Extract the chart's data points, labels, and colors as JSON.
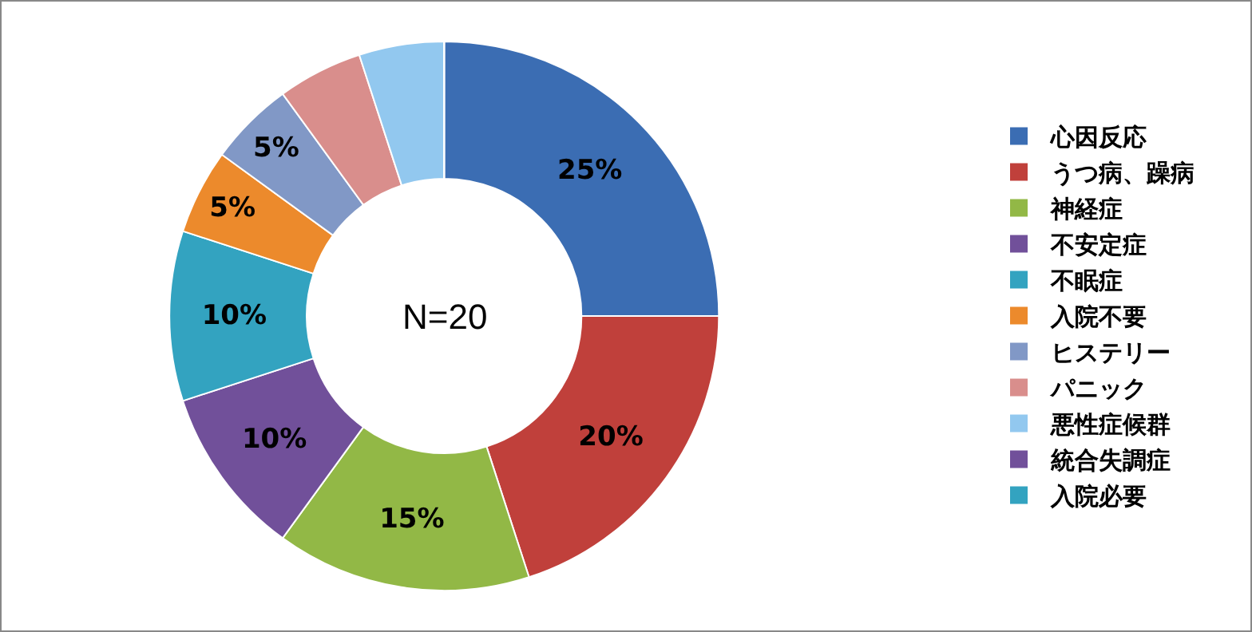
{
  "chart_data": {
    "type": "donut",
    "categories": [
      "心因反応",
      "うつ病、躁病",
      "神経症",
      "不安定症",
      "不眠症",
      "入院不要",
      "ヒステリー",
      "パニック",
      "悪性症候群",
      "統合失調症",
      "入院必要"
    ],
    "values": [
      25,
      20,
      15,
      10,
      10,
      5,
      5,
      5,
      5,
      0,
      0
    ],
    "colors": [
      "#3b6db3",
      "#c0403b",
      "#92b846",
      "#71509a",
      "#33a3c0",
      "#ec8a2c",
      "#8198c6",
      "#d98e8c",
      "#92c8ef",
      "#71509a",
      "#33a3c0"
    ],
    "value_labels": [
      "25%",
      "20%",
      "15%",
      "10%",
      "10%",
      "5%",
      "5%",
      null,
      null,
      null,
      null
    ],
    "annotations": [
      "N=20"
    ],
    "legend": "right"
  }
}
